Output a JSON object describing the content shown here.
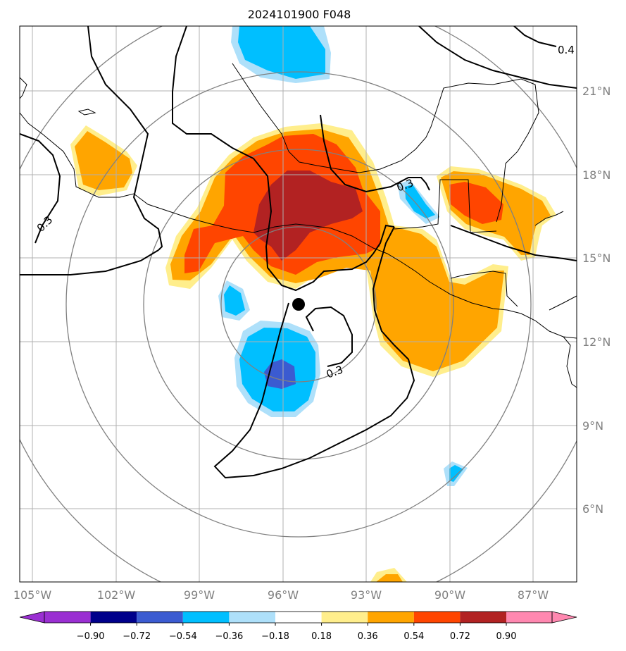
{
  "figure": {
    "title": "2024101900 F048",
    "lon_labels": [
      "105°W",
      "102°W",
      "99°W",
      "96°W",
      "93°W",
      "90°W",
      "87°W"
    ],
    "lat_labels": [
      "21°N",
      "18°N",
      "15°N",
      "12°N",
      "9°N",
      "6°N"
    ],
    "center_lon": -95.5,
    "center_lat": 13.3,
    "contour_labels": [
      "0.3",
      "0.3",
      "0.3",
      "0.4"
    ],
    "colors": {
      "c_-0.90": "#9a2fd2",
      "c_-0.72": "#00008b",
      "c_-0.54": "#3b5bd1",
      "c_-0.36": "#00bfff",
      "c_-0.18": "#aee0fa",
      "c_0.00": "#ffffff",
      "c_0.18": "#ffee8c",
      "c_0.36": "#ffa500",
      "c_0.54": "#ff4500",
      "c_0.72": "#b22222",
      "c_0.90": "#ff88b0"
    }
  },
  "colorbar": {
    "ticks": [
      "−0.90",
      "−0.72",
      "−0.54",
      "−0.36",
      "−0.18",
      "0.18",
      "0.36",
      "0.54",
      "0.72",
      "0.90"
    ]
  }
}
